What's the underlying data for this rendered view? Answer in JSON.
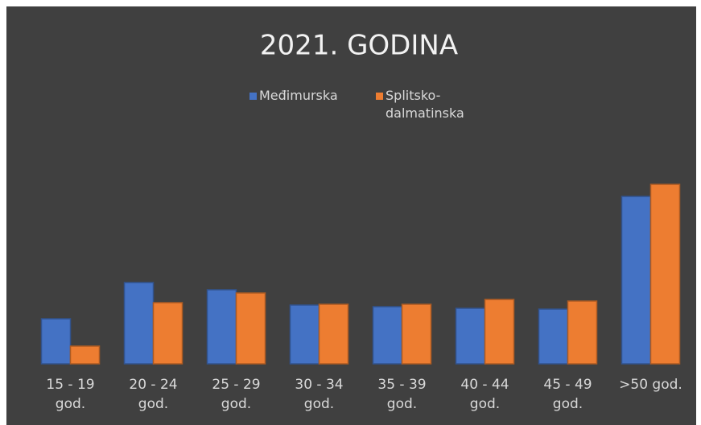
{
  "chart_data": {
    "type": "bar",
    "title": "2021. GODINA",
    "categories": [
      "15 - 19 god.",
      "20 - 24 god.",
      "25 - 29 god.",
      "30 - 34 god.",
      "35 - 39 god.",
      "40 - 44 god.",
      "45 - 49 god.",
      ">50 god."
    ],
    "series": [
      {
        "name": "Međimurska",
        "color": "#4472c4",
        "values": [
          56,
          101,
          92,
          73,
          71,
          69,
          68,
          208
        ]
      },
      {
        "name": "Splitsko-dalmatinska",
        "color": "#ed7d31",
        "values": [
          22,
          76,
          88,
          74,
          74,
          80,
          78,
          223
        ]
      }
    ],
    "legend": "top"
  }
}
